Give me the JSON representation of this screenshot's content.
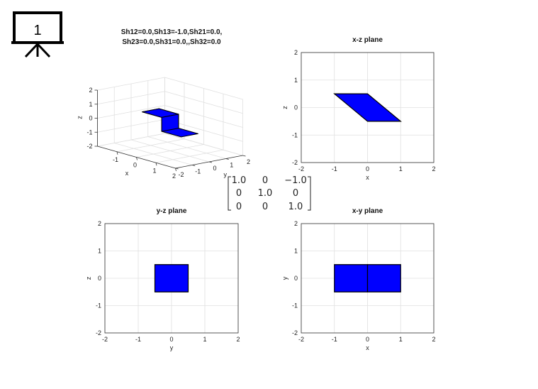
{
  "badge": {
    "number": "1",
    "icon": "presentation-board-icon"
  },
  "matrix": {
    "rows": [
      [
        "1.0",
        "0",
        "−1.0"
      ],
      [
        "0",
        "1.0",
        "0"
      ],
      [
        "0",
        "0",
        "1.0"
      ]
    ],
    "highlight_color": "#e00000",
    "highlight_cell": [
      0,
      2
    ]
  },
  "chart_data": [
    {
      "type": "3d-polyhedron",
      "title_lines": [
        "Sh12=0.0,Sh13=-1.0,Sh21=0.0,",
        "Sh23=0.0,Sh31=0.0,,Sh32=0.0"
      ],
      "xlabel": "x",
      "ylabel": "y",
      "zlabel": "z",
      "xlim": [
        -2,
        2
      ],
      "ylim": [
        -2,
        2
      ],
      "zlim": [
        -2,
        2
      ],
      "xticks": [
        "-1",
        "0",
        "1",
        "2"
      ],
      "yticks": [
        "-2",
        "-1",
        "0",
        "1",
        "2"
      ],
      "zticks": [
        "-2",
        "-1",
        "0",
        "1",
        "2"
      ],
      "grid": true,
      "fill_color": "#0000ff",
      "vertices": [
        [
          -1,
          -0.5,
          0.5
        ],
        [
          0,
          -0.5,
          0.5
        ],
        [
          0,
          0.5,
          0.5
        ],
        [
          -1,
          0.5,
          0.5
        ],
        [
          0,
          -0.5,
          -0.5
        ],
        [
          1,
          -0.5,
          -0.5
        ],
        [
          1,
          0.5,
          -0.5
        ],
        [
          0,
          0.5,
          -0.5
        ]
      ]
    },
    {
      "type": "polygon",
      "title": "x-z plane",
      "xlabel": "x",
      "ylabel": "z",
      "xlim": [
        -2,
        2
      ],
      "ylim": [
        -2,
        2
      ],
      "xticks": [
        "-2",
        "-1",
        "0",
        "1",
        "2"
      ],
      "yticks": [
        "-2",
        "-1",
        "0",
        "1",
        "2"
      ],
      "grid": true,
      "fill_color": "#0000ff",
      "polygons": [
        [
          [
            -1,
            0.5
          ],
          [
            0,
            0.5
          ],
          [
            1,
            -0.5
          ],
          [
            0,
            -0.5
          ]
        ]
      ]
    },
    {
      "type": "polygon",
      "title": "y-z plane",
      "xlabel": "y",
      "ylabel": "z",
      "xlim": [
        -2,
        2
      ],
      "ylim": [
        -2,
        2
      ],
      "xticks": [
        "-2",
        "-1",
        "0",
        "1",
        "2"
      ],
      "yticks": [
        "-2",
        "-1",
        "0",
        "1",
        "2"
      ],
      "grid": true,
      "fill_color": "#0000ff",
      "polygons": [
        [
          [
            -0.5,
            -0.5
          ],
          [
            0.5,
            -0.5
          ],
          [
            0.5,
            0.5
          ],
          [
            -0.5,
            0.5
          ]
        ]
      ]
    },
    {
      "type": "polygon",
      "title": "x-y plane",
      "xlabel": "x",
      "ylabel": "y",
      "xlim": [
        -2,
        2
      ],
      "ylim": [
        -2,
        2
      ],
      "xticks": [
        "-2",
        "-1",
        "0",
        "1",
        "2"
      ],
      "yticks": [
        "-2",
        "-1",
        "0",
        "1",
        "2"
      ],
      "grid": true,
      "fill_color": "#0000ff",
      "polygons": [
        [
          [
            -1,
            -0.5
          ],
          [
            0,
            -0.5
          ],
          [
            0,
            0.5
          ],
          [
            -1,
            0.5
          ]
        ],
        [
          [
            0,
            -0.5
          ],
          [
            1,
            -0.5
          ],
          [
            1,
            0.5
          ],
          [
            0,
            0.5
          ]
        ]
      ]
    }
  ]
}
